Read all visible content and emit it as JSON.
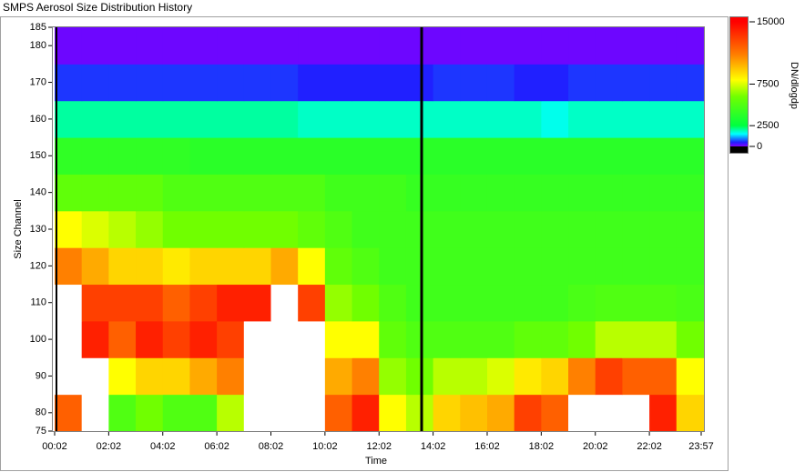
{
  "window_title": "SMPS Aerosol Size Distribution History",
  "chart_data": {
    "type": "heatmap",
    "xlabel": "Time",
    "ylabel": "Size Channel",
    "colorbar_label": "DN/dlogdp",
    "xlim": [
      2,
      1437
    ],
    "ylim": [
      75,
      185
    ],
    "zlim": [
      0,
      15000
    ],
    "xticks": [
      {
        "value": 2,
        "label": "00:02"
      },
      {
        "value": 122,
        "label": "02:02"
      },
      {
        "value": 242,
        "label": "04:02"
      },
      {
        "value": 362,
        "label": "06:02"
      },
      {
        "value": 482,
        "label": "08:02"
      },
      {
        "value": 602,
        "label": "10:02"
      },
      {
        "value": 722,
        "label": "12:02"
      },
      {
        "value": 842,
        "label": "14:02"
      },
      {
        "value": 962,
        "label": "16:02"
      },
      {
        "value": 1082,
        "label": "18:02"
      },
      {
        "value": 1202,
        "label": "20:02"
      },
      {
        "value": 1322,
        "label": "22:02"
      },
      {
        "value": 1437,
        "label": "23:57"
      }
    ],
    "yticks": [
      75,
      80,
      90,
      100,
      110,
      120,
      130,
      140,
      150,
      160,
      170,
      180,
      185
    ],
    "zticks": [
      0,
      2500,
      7500,
      15000
    ],
    "colorscale": [
      [
        0,
        "#8000ff"
      ],
      [
        500,
        "#2020ff"
      ],
      [
        1500,
        "#00ffff"
      ],
      [
        2500,
        "#00ff40"
      ],
      [
        6000,
        "#70ff00"
      ],
      [
        8000,
        "#ffff00"
      ],
      [
        11000,
        "#ff8000"
      ],
      [
        15000,
        "#ff0000"
      ]
    ],
    "under_color": "#000000",
    "over_color": "#ffffff",
    "x": [
      32,
      92,
      152,
      212,
      272,
      332,
      392,
      452,
      512,
      572,
      632,
      692,
      752,
      812,
      872,
      932,
      992,
      1052,
      1112,
      1172,
      1232,
      1292,
      1352,
      1412
    ],
    "y": [
      80,
      90,
      100,
      110,
      120,
      130,
      140,
      150,
      160,
      170,
      180
    ],
    "z": [
      [
        12000,
        16000,
        5000,
        6000,
        5000,
        5000,
        7000,
        16000,
        16000,
        16000,
        12000,
        14000,
        8000,
        7000,
        9000,
        9500,
        10000,
        13000,
        12000,
        16000,
        16000,
        16000,
        14000,
        9000
      ],
      [
        16000,
        16000,
        8000,
        9000,
        9000,
        10000,
        11000,
        16000,
        16000,
        16000,
        10000,
        11000,
        6500,
        6000,
        7000,
        7000,
        7500,
        8500,
        9000,
        11000,
        13000,
        12000,
        12000,
        8000
      ],
      [
        16000,
        14000,
        12000,
        14000,
        13000,
        14000,
        13000,
        16000,
        16000,
        16000,
        8000,
        8000,
        5500,
        5000,
        5000,
        5000,
        5000,
        5500,
        5500,
        6000,
        7000,
        7000,
        7000,
        6000
      ],
      [
        16000,
        13000,
        13000,
        13000,
        12000,
        13000,
        14000,
        14000,
        16000,
        13000,
        6500,
        6000,
        5000,
        4500,
        4500,
        4500,
        4500,
        4500,
        4500,
        4800,
        5000,
        5000,
        5000,
        4800
      ],
      [
        11000,
        10000,
        9000,
        9000,
        8500,
        9000,
        9000,
        9000,
        10000,
        8000,
        5500,
        5000,
        4500,
        4500,
        4500,
        4500,
        4500,
        4500,
        4500,
        4500,
        4500,
        4500,
        4500,
        4500
      ],
      [
        8000,
        7500,
        7000,
        6500,
        6000,
        6000,
        6000,
        6000,
        6000,
        5500,
        5000,
        4500,
        4500,
        4500,
        4500,
        4500,
        4500,
        4500,
        4500,
        4500,
        4500,
        4500,
        4500,
        4500
      ],
      [
        5500,
        5500,
        5500,
        5500,
        5000,
        5000,
        5000,
        5000,
        5000,
        5000,
        4500,
        4500,
        4500,
        4200,
        4200,
        4200,
        4200,
        4200,
        4200,
        4200,
        4200,
        4200,
        4200,
        4200
      ],
      [
        4000,
        4000,
        4000,
        4000,
        4000,
        3800,
        3800,
        3800,
        3800,
        3800,
        3800,
        3800,
        3800,
        3800,
        3800,
        3800,
        3800,
        3800,
        3800,
        3800,
        3800,
        3800,
        3800,
        3800
      ],
      [
        2000,
        2000,
        2000,
        2000,
        2000,
        2000,
        2000,
        2000,
        2000,
        1800,
        1800,
        1800,
        1800,
        1800,
        1800,
        1800,
        1800,
        1800,
        1600,
        1800,
        1800,
        1800,
        1800,
        1800
      ],
      [
        600,
        600,
        600,
        600,
        600,
        600,
        600,
        600,
        600,
        500,
        500,
        500,
        500,
        500,
        600,
        600,
        600,
        500,
        500,
        600,
        600,
        600,
        600,
        600
      ],
      [
        100,
        100,
        100,
        100,
        100,
        100,
        100,
        100,
        100,
        100,
        100,
        100,
        100,
        100,
        100,
        100,
        100,
        100,
        100,
        100,
        100,
        100,
        100,
        100
      ]
    ]
  }
}
